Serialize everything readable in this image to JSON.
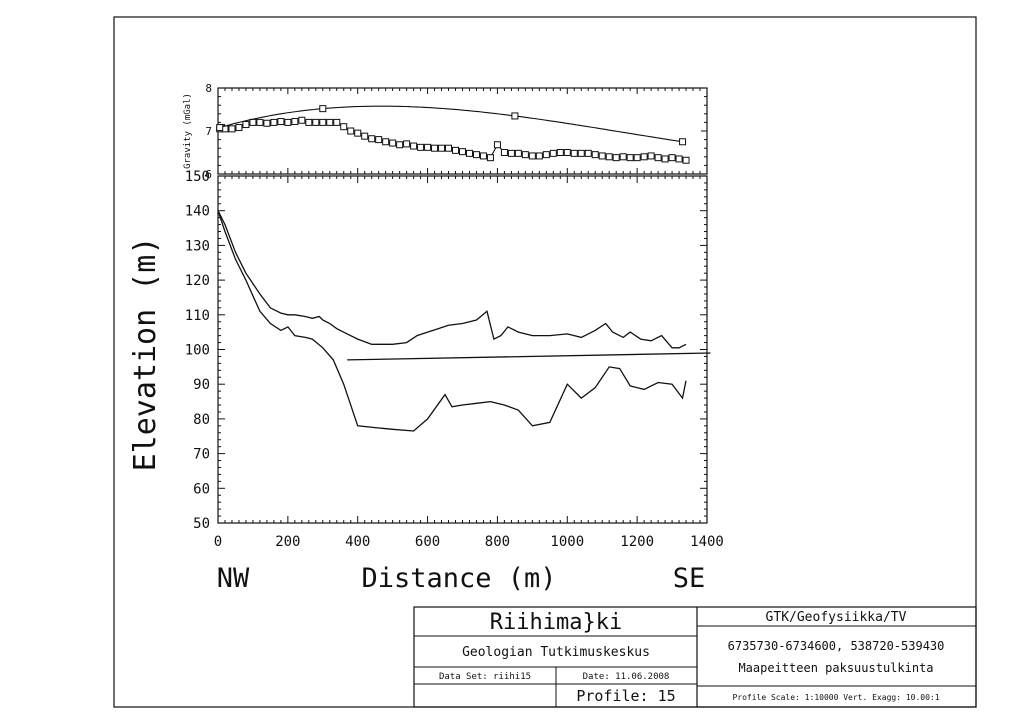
{
  "chart_data": [
    {
      "type": "line",
      "panel": "gravity",
      "ylabel": "Gravity (mGal)",
      "ylim": [
        6,
        8
      ],
      "xlim": [
        0,
        1400
      ],
      "yticks": [
        "6",
        "7",
        "8"
      ],
      "grid": false,
      "series": [
        {
          "name": "",
          "marker": "square",
          "x": [
            5,
            10,
            20,
            40,
            60,
            80,
            100,
            120,
            140,
            160,
            180,
            200,
            220,
            240,
            260,
            280,
            300,
            320,
            340,
            360,
            380,
            400,
            420,
            440,
            460,
            480,
            500,
            520,
            540,
            560,
            580,
            600,
            620,
            640,
            660,
            680,
            700,
            720,
            740,
            760,
            780,
            800,
            820,
            840,
            860,
            880,
            900,
            920,
            940,
            960,
            980,
            1000,
            1020,
            1040,
            1060,
            1080,
            1100,
            1120,
            1140,
            1160,
            1180,
            1200,
            1220,
            1240,
            1260,
            1280,
            1300,
            1320,
            1340
          ],
          "y": [
            7.05,
            7.08,
            7.05,
            7.05,
            7.08,
            7.15,
            7.2,
            7.2,
            7.18,
            7.2,
            7.22,
            7.2,
            7.22,
            7.25,
            7.2,
            7.2,
            7.2,
            7.2,
            7.2,
            7.1,
            7.0,
            6.95,
            6.88,
            6.82,
            6.8,
            6.75,
            6.72,
            6.68,
            6.7,
            6.65,
            6.62,
            6.62,
            6.6,
            6.6,
            6.6,
            6.55,
            6.52,
            6.48,
            6.45,
            6.42,
            6.38,
            6.68,
            6.5,
            6.48,
            6.48,
            6.45,
            6.42,
            6.42,
            6.45,
            6.48,
            6.5,
            6.5,
            6.48,
            6.48,
            6.48,
            6.45,
            6.42,
            6.4,
            6.38,
            6.4,
            6.38,
            6.38,
            6.4,
            6.42,
            6.38,
            6.35,
            6.38,
            6.35,
            6.32
          ]
        },
        {
          "name": "",
          "marker": "square",
          "curve": "smooth",
          "x": [
            5,
            300,
            850,
            1330
          ],
          "y": [
            7.08,
            7.52,
            7.35,
            6.75
          ]
        }
      ]
    },
    {
      "type": "line",
      "panel": "elevation",
      "ylabel": "Elevation (m)",
      "ylim": [
        50,
        150
      ],
      "xlim": [
        0,
        1400
      ],
      "yticks": [
        "50",
        "60",
        "70",
        "80",
        "90",
        "100",
        "110",
        "120",
        "130",
        "140",
        "150"
      ],
      "xticks": [
        "0",
        "200",
        "400",
        "600",
        "800",
        "1000",
        "1200",
        "1400"
      ],
      "xlabel": "Distance (m)",
      "direction_labels": [
        "NW",
        "SE"
      ],
      "grid": false,
      "series": [
        {
          "name": "",
          "x": [
            0,
            20,
            50,
            80,
            120,
            150,
            180,
            200,
            220,
            250,
            270,
            290,
            300,
            320,
            340,
            370,
            400,
            440,
            500,
            540,
            570,
            600,
            630,
            660,
            700,
            740,
            770,
            790,
            810,
            830,
            860,
            900,
            950,
            1000,
            1040,
            1080,
            1110,
            1130,
            1160,
            1180,
            1210,
            1240,
            1270,
            1300,
            1320,
            1340
          ],
          "y": [
            140,
            136,
            128,
            122,
            116,
            112,
            110.5,
            110,
            110,
            109.5,
            109,
            109.5,
            108.5,
            107.5,
            106,
            104.5,
            103,
            101.5,
            101.5,
            102,
            104,
            105,
            106,
            107,
            107.5,
            108.5,
            111,
            103,
            104,
            106.5,
            105,
            104,
            104,
            104.5,
            103.5,
            105.5,
            107.5,
            105,
            103.5,
            105,
            103,
            102.5,
            104,
            100.5,
            100.5,
            101.5
          ]
        },
        {
          "name": "",
          "x": [
            0,
            20,
            50,
            80,
            120,
            150,
            180,
            200,
            220,
            250,
            270,
            300,
            330,
            360,
            400,
            450,
            500,
            560,
            600,
            650,
            670,
            700,
            740,
            780,
            820,
            860,
            900,
            950,
            1000,
            1040,
            1080,
            1120,
            1150,
            1180,
            1220,
            1260,
            1300,
            1330,
            1340
          ],
          "y": [
            140,
            134,
            126,
            120,
            111,
            107.5,
            105.5,
            106.5,
            104,
            103.5,
            103,
            100.5,
            97,
            90,
            78,
            77.5,
            77,
            76.5,
            80,
            87,
            83.5,
            84,
            84.5,
            85,
            84,
            82.5,
            78,
            79,
            90,
            86,
            89,
            95,
            94.5,
            89.5,
            88.5,
            90.5,
            90,
            86,
            91
          ]
        },
        {
          "name": "",
          "x": [
            370,
            1410
          ],
          "y": [
            97,
            99
          ]
        }
      ]
    }
  ],
  "title_block": {
    "site": "Riihima}ki",
    "organization": "Geologian Tutkimuskeskus",
    "data_set": "Data Set: riihi15",
    "date": "Date: 11.06.2008",
    "profile": "Profile: 15",
    "department": "GTK/Geofysiikka/TV",
    "coordinates": "6735730-6734600, 538720-539430",
    "purpose": "Maapeitteen paksuustulkinta",
    "scale": "Profile Scale: 1:10000 Vert. Exagg: 10.00:1"
  }
}
